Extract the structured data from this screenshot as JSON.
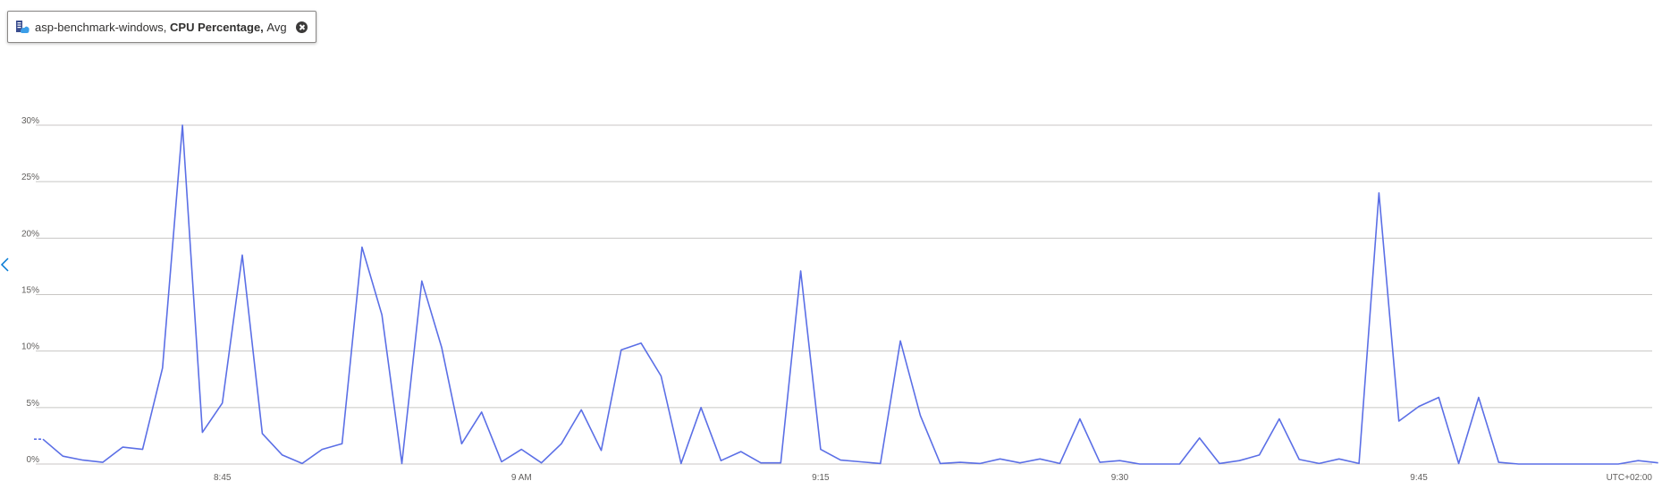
{
  "metric_pill": {
    "resource": "asp-benchmark-windows,",
    "metric": "CPU Percentage,",
    "aggregation": "Avg"
  },
  "icons": {
    "resource": "app-service-icon",
    "close": "close-circle-icon",
    "nav_left": "chevron-left-icon"
  },
  "timezone_label": "UTC+02:00",
  "colors": {
    "series": "#5b6fe6",
    "grid": "#c8c6c4",
    "accent": "#0078d4"
  },
  "chart_data": {
    "type": "line",
    "grid": true,
    "y_unit": "%",
    "ylim": [
      0,
      30
    ],
    "y_ticks": [
      0,
      5,
      10,
      15,
      20,
      25,
      30
    ],
    "y_tick_labels": [
      "0%",
      "5%",
      "10%",
      "15%",
      "20%",
      "25%",
      "30%"
    ],
    "xlim_minutes_after_8": [
      36,
      116.7
    ],
    "x_ticks_minutes_after_8": [
      45,
      60,
      75,
      90,
      105
    ],
    "x_tick_labels": [
      "8:45",
      "9 AM",
      "9:15",
      "9:30",
      "9:45"
    ],
    "series": [
      {
        "start_time": "8:36",
        "interval_minutes": 1,
        "values": [
          2.2,
          0.7,
          0.35,
          0.15,
          1.5,
          1.3,
          8.5,
          30,
          2.8,
          5.4,
          18.5,
          2.7,
          0.8,
          0.05,
          1.3,
          1.8,
          19.2,
          13.2,
          0.05,
          16.2,
          10.3,
          1.8,
          4.6,
          0.2,
          1.3,
          0.1,
          1.8,
          4.8,
          1.2,
          10.1,
          10.7,
          7.8,
          0.05,
          5.0,
          0.3,
          1.1,
          0.1,
          0.1,
          17.1,
          1.3,
          0.35,
          0.2,
          0.05,
          10.9,
          4.3,
          0.05,
          0.15,
          0.05,
          0.45,
          0.1,
          0.45,
          0.05,
          4.0,
          0.15,
          0.3,
          0.0,
          0.0,
          0.0,
          2.3,
          0.05,
          0.3,
          0.8,
          4.0,
          0.4,
          0.05,
          0.45,
          0.05,
          24.0,
          3.8,
          5.1,
          5.9,
          0.05,
          5.9,
          0.15,
          0.0,
          0.0,
          0.0,
          0.0,
          0.0,
          0.0,
          0.3,
          0.1
        ]
      }
    ]
  }
}
